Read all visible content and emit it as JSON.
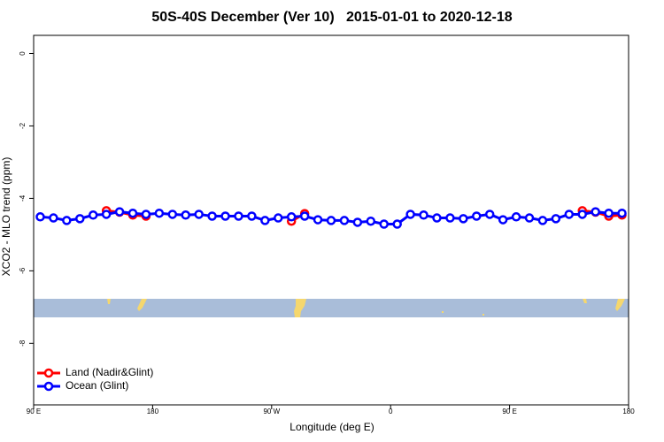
{
  "chart_data": {
    "type": "line",
    "title": "50S-40S December (Ver 10)   2015-01-01 to 2020-12-18",
    "xlabel": "Longitude (deg E)",
    "ylabel": "XCO2 - MLO trend (ppm)",
    "x": [
      95,
      105,
      115,
      125,
      135,
      145,
      155,
      165,
      175,
      185,
      195,
      205,
      215,
      225,
      235,
      245,
      255,
      265,
      275,
      285,
      295,
      305,
      315,
      325,
      335,
      345,
      355,
      365,
      375,
      385,
      395,
      405,
      415,
      425,
      435,
      445,
      455,
      465,
      475,
      485,
      495,
      505,
      515,
      525,
      535
    ],
    "series": [
      {
        "name": "Land (Nadir&Glint)",
        "color": "#ff0000",
        "values": [
          null,
          null,
          null,
          null,
          null,
          -4.34,
          -4.38,
          -4.46,
          -4.49,
          null,
          null,
          null,
          null,
          null,
          null,
          null,
          null,
          null,
          null,
          -4.63,
          -4.42,
          null,
          null,
          null,
          null,
          null,
          null,
          null,
          null,
          null,
          null,
          null,
          null,
          null,
          null,
          null,
          null,
          null,
          null,
          null,
          null,
          -4.34,
          -4.38,
          -4.49,
          -4.46
        ]
      },
      {
        "name": "Ocean (Glint)",
        "color": "#0000ff",
        "values": [
          -4.51,
          -4.54,
          -4.61,
          -4.56,
          -4.46,
          -4.44,
          -4.37,
          -4.41,
          -4.44,
          -4.41,
          -4.44,
          -4.46,
          -4.44,
          -4.49,
          -4.49,
          -4.49,
          -4.49,
          -4.61,
          -4.54,
          -4.51,
          -4.49,
          -4.59,
          -4.61,
          -4.61,
          -4.66,
          -4.63,
          -4.71,
          -4.71,
          -4.44,
          -4.46,
          -4.54,
          -4.54,
          -4.56,
          -4.49,
          -4.44,
          -4.59,
          -4.51,
          -4.54,
          -4.61,
          -4.56,
          -4.44,
          -4.44,
          -4.37,
          -4.41,
          -4.41
        ]
      }
    ],
    "xlim": [
      90,
      540
    ],
    "xticks": [
      {
        "value": 90,
        "label": "90 E"
      },
      180,
      {
        "value": 270,
        "label": "90 W"
      },
      {
        "value": 360,
        "label": "0"
      },
      {
        "value": 450,
        "label": "90 E"
      },
      {
        "value": 540,
        "label": "180"
      }
    ],
    "ylim": [
      -9.7,
      0.5
    ],
    "yticks": [
      0,
      -2,
      -4,
      -6,
      -8
    ],
    "legend": "bottom-left"
  }
}
